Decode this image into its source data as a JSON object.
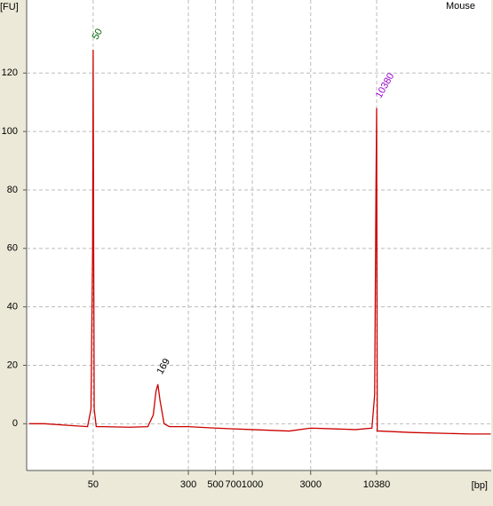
{
  "chart_data": {
    "type": "line",
    "title": "Mouse",
    "y_label": "[FU]",
    "x_label": "[bp]",
    "x_scale": "log",
    "grid": true,
    "xlim": [
      14.3,
      89700
    ],
    "ylim": [
      -16,
      145
    ],
    "xticks": [
      50,
      300,
      500,
      700,
      1000,
      3000,
      10380
    ],
    "yticks": [
      0,
      20,
      40,
      60,
      80,
      100,
      120
    ],
    "series": [
      {
        "name": "Mouse",
        "color": "#cc0000",
        "x": [
          15,
          20,
          30,
          45,
          48,
          49.5,
          50,
          50.5,
          51,
          53,
          60,
          100,
          140,
          155,
          163,
          169,
          176,
          190,
          210,
          300,
          500,
          1000,
          2000,
          3000,
          7000,
          9500,
          10000,
          10250,
          10380,
          10500,
          10700,
          11000,
          20000,
          60000,
          89000
        ],
        "values": [
          0,
          0,
          -0.5,
          -1,
          5,
          60,
          128,
          60,
          5,
          -1,
          -1,
          -1.2,
          -1,
          3,
          11,
          13.5,
          8,
          0,
          -1,
          -1,
          -1.5,
          -2,
          -2.5,
          -1.5,
          -2,
          -1.5,
          10,
          80,
          108,
          -2.5,
          -2.5,
          -2.5,
          -3,
          -3.5,
          -3.5
        ]
      }
    ],
    "peak_labels": [
      50,
      169,
      10380
    ],
    "peak_colors": [
      "#006400",
      "#000000",
      "#9900cc"
    ]
  }
}
